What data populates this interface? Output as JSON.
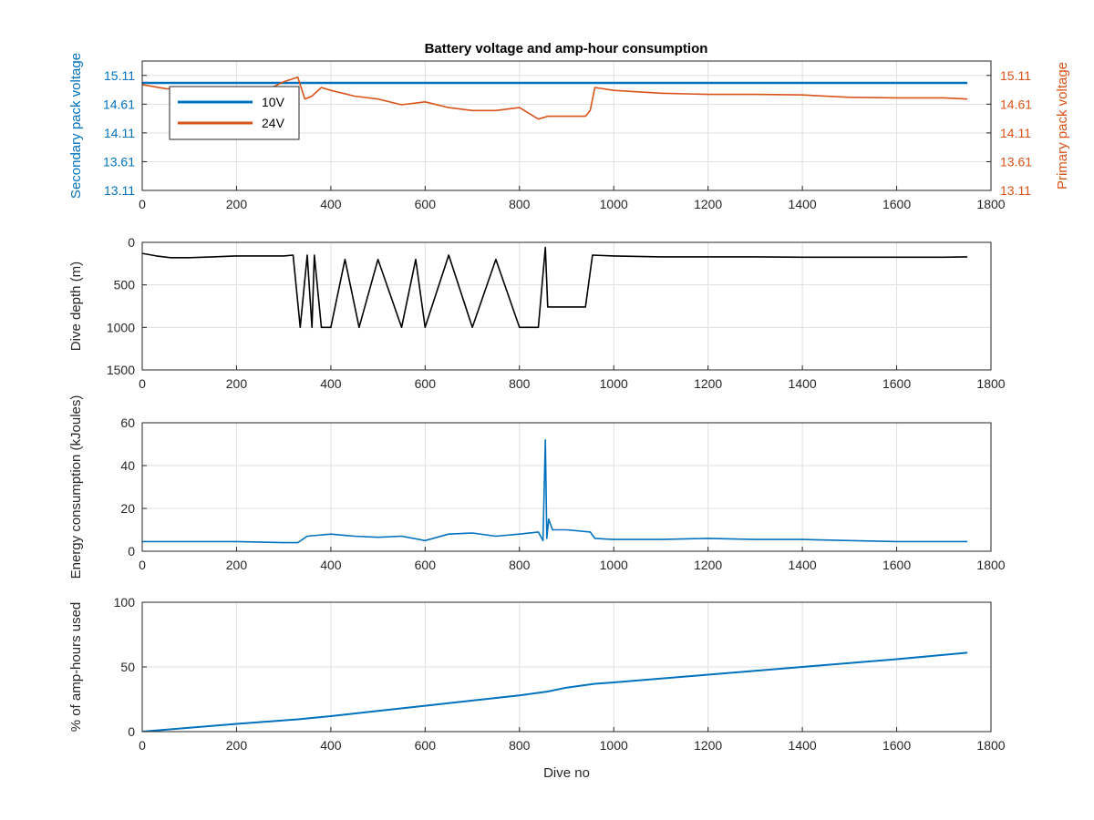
{
  "figure_title": "Battery voltage and amp-hour consumption",
  "colors": {
    "blue": "#0072BD",
    "orange": "#D95319",
    "black": "#000000",
    "axis": "#262626",
    "grid": "#dfdfdf"
  },
  "chart_data": [
    {
      "type": "line",
      "title": "Battery voltage and amp-hour consumption",
      "xlabel": "",
      "ylabel": "Secondary pack voltage",
      "ylabel_right": "Primary pack voltage",
      "xlim": [
        0,
        1800
      ],
      "ylim": [
        13.11,
        15.36
      ],
      "xticks": [
        "0",
        "200",
        "400",
        "600",
        "800",
        "1000",
        "1200",
        "1400",
        "1600",
        "1800"
      ],
      "yticks": [
        "13.11",
        "13.61",
        "14.11",
        "14.61",
        "15.11"
      ],
      "yticks_right": [
        "13.11",
        "13.61",
        "14.11",
        "14.61",
        "15.11"
      ],
      "grid": true,
      "legend": "top-left",
      "series": [
        {
          "name": "10V",
          "axis": "left",
          "color": "#0072BD",
          "x": [
            0,
            1750
          ],
          "values": [
            14.98,
            14.98
          ]
        },
        {
          "name": "24V",
          "axis": "right",
          "color": "#D95319",
          "x": [
            0,
            50,
            100,
            200,
            270,
            300,
            330,
            345,
            360,
            380,
            400,
            450,
            500,
            550,
            600,
            650,
            700,
            750,
            800,
            840,
            860,
            880,
            900,
            920,
            940,
            950,
            960,
            1000,
            1100,
            1200,
            1300,
            1400,
            1500,
            1600,
            1700,
            1750
          ],
          "values": [
            14.95,
            14.88,
            14.87,
            14.88,
            14.88,
            15.0,
            15.08,
            14.7,
            14.75,
            14.9,
            14.85,
            14.75,
            14.7,
            14.6,
            14.65,
            14.55,
            14.5,
            14.5,
            14.55,
            14.35,
            14.4,
            14.4,
            14.4,
            14.4,
            14.4,
            14.5,
            14.9,
            14.85,
            14.8,
            14.78,
            14.78,
            14.77,
            14.73,
            14.72,
            14.72,
            14.7
          ]
        }
      ]
    },
    {
      "type": "line",
      "xlabel": "",
      "ylabel": "Dive depth (m)",
      "xlim": [
        0,
        1800
      ],
      "ylim": [
        0,
        1500
      ],
      "y_reversed": true,
      "xticks": [
        "0",
        "200",
        "400",
        "600",
        "800",
        "1000",
        "1200",
        "1400",
        "1600",
        "1800"
      ],
      "yticks": [
        "0",
        "500",
        "1000",
        "1500"
      ],
      "grid": true,
      "series": [
        {
          "name": "",
          "color": "#000000",
          "x": [
            0,
            30,
            60,
            100,
            150,
            200,
            250,
            300,
            320,
            335,
            350,
            360,
            365,
            380,
            400,
            430,
            460,
            500,
            550,
            580,
            600,
            650,
            700,
            750,
            800,
            840,
            855,
            860,
            900,
            940,
            955,
            1000,
            1100,
            1200,
            1300,
            1400,
            1500,
            1600,
            1700,
            1750
          ],
          "values": [
            130,
            160,
            180,
            180,
            170,
            160,
            160,
            160,
            150,
            1000,
            150,
            1000,
            150,
            1000,
            1000,
            200,
            1000,
            200,
            1000,
            200,
            1000,
            150,
            1000,
            200,
            1000,
            1000,
            60,
            760,
            760,
            760,
            150,
            160,
            170,
            170,
            170,
            175,
            175,
            175,
            175,
            170
          ]
        }
      ]
    },
    {
      "type": "line",
      "xlabel": "",
      "ylabel": "Energy consumption (kJoules)",
      "xlim": [
        0,
        1800
      ],
      "ylim": [
        0,
        60
      ],
      "xticks": [
        "0",
        "200",
        "400",
        "600",
        "800",
        "1000",
        "1200",
        "1400",
        "1600",
        "1800"
      ],
      "yticks": [
        "0",
        "20",
        "40",
        "60"
      ],
      "grid": true,
      "series": [
        {
          "name": "",
          "color": "#0072BD",
          "x": [
            0,
            100,
            200,
            300,
            330,
            350,
            400,
            450,
            500,
            550,
            600,
            650,
            700,
            750,
            800,
            840,
            850,
            855,
            858,
            862,
            870,
            900,
            950,
            960,
            1000,
            1100,
            1200,
            1300,
            1400,
            1500,
            1600,
            1700,
            1750
          ],
          "values": [
            4.5,
            4.5,
            4.5,
            4.0,
            4.0,
            7.0,
            8.0,
            7.0,
            6.5,
            7.0,
            5.0,
            8.0,
            8.5,
            7.0,
            8.0,
            9.0,
            5.0,
            52.0,
            6.0,
            15.0,
            10.0,
            10.0,
            9.0,
            6.0,
            5.5,
            5.5,
            6.0,
            5.5,
            5.5,
            5.0,
            4.5,
            4.5,
            4.5
          ]
        }
      ]
    },
    {
      "type": "line",
      "xlabel": "Dive no",
      "ylabel": "% of amp-hours used",
      "xlim": [
        0,
        1800
      ],
      "ylim": [
        0,
        100
      ],
      "xticks": [
        "0",
        "200",
        "400",
        "600",
        "800",
        "1000",
        "1200",
        "1400",
        "1600",
        "1800"
      ],
      "yticks": [
        "0",
        "50",
        "100"
      ],
      "grid": true,
      "series": [
        {
          "name": "",
          "color": "#0072BD",
          "x": [
            0,
            100,
            200,
            330,
            400,
            500,
            600,
            700,
            800,
            860,
            900,
            960,
            1000,
            1200,
            1400,
            1600,
            1750
          ],
          "values": [
            0,
            3,
            6,
            9.5,
            12,
            16,
            20,
            24,
            28,
            31,
            34,
            37,
            38,
            44,
            50,
            56,
            61
          ]
        }
      ]
    }
  ]
}
